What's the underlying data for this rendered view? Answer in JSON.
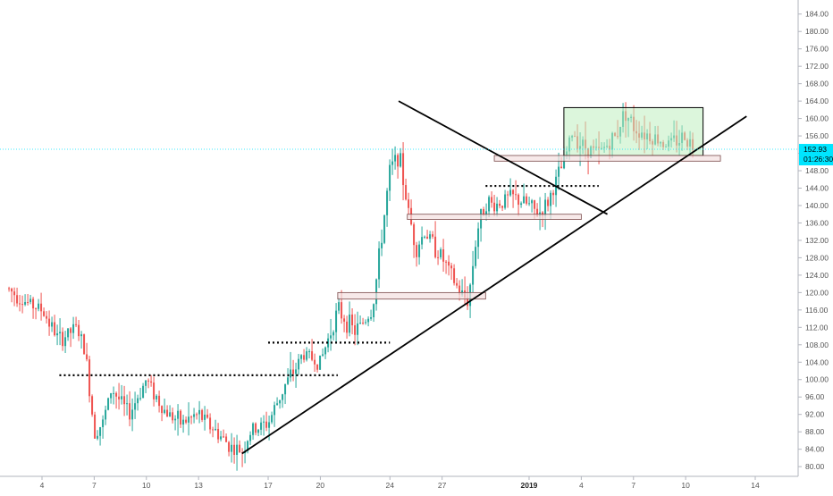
{
  "colors": {
    "background": "#ffffff",
    "up": "#26a69a",
    "down": "#ef5350",
    "axis_text": "#555555",
    "axis_line": "#b2b5be",
    "trendline": "#000000",
    "zone_fill": "#f3e0e0",
    "zone_stroke": "#7a4a4a",
    "range_fill": "#bfeebf",
    "price_tag": "#00e5ff"
  },
  "chart_data": {
    "type": "candlestick",
    "y_axis": {
      "position": "right",
      "range": [
        79,
        186
      ],
      "ticks": [
        80,
        84,
        88,
        92,
        96,
        100,
        104,
        108,
        112,
        116,
        120,
        124,
        128,
        132,
        136,
        140,
        144,
        148,
        152,
        156,
        160,
        164,
        168,
        172,
        176,
        180,
        184
      ],
      "tick_labels": [
        "80.00",
        "84.00",
        "88.00",
        "92.00",
        "96.00",
        "100.00",
        "104.00",
        "108.00",
        "112.00",
        "116.00",
        "120.00",
        "124.00",
        "128.00",
        "132.00",
        "136.00",
        "140.00",
        "144.00",
        "148.00",
        "152.00",
        "156.00",
        "160.00",
        "164.00",
        "168.00",
        "172.00",
        "176.00",
        "180.00",
        "184.00"
      ]
    },
    "x_axis": {
      "ticks": [
        {
          "label": "4",
          "date": "2018-12-04"
        },
        {
          "label": "7",
          "date": "2018-12-07"
        },
        {
          "label": "10",
          "date": "2018-12-10"
        },
        {
          "label": "13",
          "date": "2018-12-13"
        },
        {
          "label": "17",
          "date": "2018-12-17"
        },
        {
          "label": "20",
          "date": "2018-12-20"
        },
        {
          "label": "24",
          "date": "2018-12-24"
        },
        {
          "label": "27",
          "date": "2018-12-27"
        },
        {
          "label": "2019",
          "date": "2019-01-01",
          "bold": true
        },
        {
          "label": "4",
          "date": "2019-01-04"
        },
        {
          "label": "7",
          "date": "2019-01-07"
        },
        {
          "label": "10",
          "date": "2019-01-10"
        },
        {
          "label": "14",
          "date": "2019-01-14"
        }
      ]
    },
    "current_price": {
      "value": 152.93,
      "label": "152.93",
      "countdown": "01:26:30"
    },
    "price_path": [
      {
        "x": "2018-12-02",
        "y": 121
      },
      {
        "x": "2018-12-03",
        "y": 118
      },
      {
        "x": "2018-12-04",
        "y": 116
      },
      {
        "x": "2018-12-05",
        "y": 109
      },
      {
        "x": "2018-12-06",
        "y": 112
      },
      {
        "x": "2018-12-06 12:00",
        "y": 106
      },
      {
        "x": "2018-12-07",
        "y": 88
      },
      {
        "x": "2018-12-07 12:00",
        "y": 90
      },
      {
        "x": "2018-12-08",
        "y": 98
      },
      {
        "x": "2018-12-09",
        "y": 92
      },
      {
        "x": "2018-12-10",
        "y": 100
      },
      {
        "x": "2018-12-11",
        "y": 93
      },
      {
        "x": "2018-12-12",
        "y": 90
      },
      {
        "x": "2018-12-13",
        "y": 92
      },
      {
        "x": "2018-12-14",
        "y": 88
      },
      {
        "x": "2018-12-15",
        "y": 84
      },
      {
        "x": "2018-12-15 12:00",
        "y": 83.5
      },
      {
        "x": "2018-12-16",
        "y": 88
      },
      {
        "x": "2018-12-17",
        "y": 90
      },
      {
        "x": "2018-12-18",
        "y": 99
      },
      {
        "x": "2018-12-18 12:00",
        "y": 102
      },
      {
        "x": "2018-12-19",
        "y": 106
      },
      {
        "x": "2018-12-20",
        "y": 104
      },
      {
        "x": "2018-12-21",
        "y": 116
      },
      {
        "x": "2018-12-22",
        "y": 111
      },
      {
        "x": "2018-12-23",
        "y": 116
      },
      {
        "x": "2018-12-23 12:00",
        "y": 132
      },
      {
        "x": "2018-12-24",
        "y": 148
      },
      {
        "x": "2018-12-24 12:00",
        "y": 152
      },
      {
        "x": "2018-12-25",
        "y": 140
      },
      {
        "x": "2018-12-25 12:00",
        "y": 130
      },
      {
        "x": "2018-12-26",
        "y": 134
      },
      {
        "x": "2018-12-27",
        "y": 128
      },
      {
        "x": "2018-12-28",
        "y": 120
      },
      {
        "x": "2018-12-28 12:00",
        "y": 118
      },
      {
        "x": "2018-12-29",
        "y": 134
      },
      {
        "x": "2018-12-29 12:00",
        "y": 141
      },
      {
        "x": "2018-12-30",
        "y": 140
      },
      {
        "x": "2018-12-31",
        "y": 142
      },
      {
        "x": "2019-01-01",
        "y": 140
      },
      {
        "x": "2019-01-01 12:00",
        "y": 138
      },
      {
        "x": "2019-01-02",
        "y": 140
      },
      {
        "x": "2019-01-03",
        "y": 150
      },
      {
        "x": "2019-01-03 12:00",
        "y": 157
      },
      {
        "x": "2019-01-04",
        "y": 154
      },
      {
        "x": "2019-01-05",
        "y": 152
      },
      {
        "x": "2019-01-06",
        "y": 156
      },
      {
        "x": "2019-01-06 12:00",
        "y": 162
      },
      {
        "x": "2019-01-07",
        "y": 158
      },
      {
        "x": "2019-01-08",
        "y": 156
      },
      {
        "x": "2019-01-09",
        "y": 154
      },
      {
        "x": "2019-01-10",
        "y": 156
      },
      {
        "x": "2019-01-10 12:00",
        "y": 153
      }
    ],
    "annotations": {
      "trendlines": [
        {
          "name": "ascending-support-line",
          "from": {
            "x": "2018-12-15 12:00",
            "y": 83
          },
          "to": {
            "x": "2019-01-13 12:00",
            "y": 160.5
          }
        },
        {
          "name": "descending-resistance-line",
          "from": {
            "x": "2018-12-24 12:00",
            "y": 164
          },
          "to": {
            "x": "2019-01-05 12:00",
            "y": 138
          }
        }
      ],
      "dotted_levels": [
        {
          "name": "level-101",
          "y": 101,
          "from": "2018-12-05",
          "to": "2018-12-21"
        },
        {
          "name": "level-108-5",
          "y": 108.5,
          "from": "2018-12-17",
          "to": "2018-12-24"
        },
        {
          "name": "level-144-5",
          "y": 144.5,
          "from": "2018-12-29 12:00",
          "to": "2019-01-05"
        }
      ],
      "zones": [
        {
          "name": "zone-119",
          "y1": 118.5,
          "y2": 120,
          "from": "2018-12-21",
          "to": "2018-12-29 12:00"
        },
        {
          "name": "zone-137",
          "y1": 136.8,
          "y2": 138,
          "from": "2018-12-25",
          "to": "2019-01-04"
        },
        {
          "name": "zone-150",
          "y1": 150.2,
          "y2": 151.5,
          "from": "2018-12-30",
          "to": "2019-01-12"
        }
      ],
      "range_box": {
        "name": "consolidation-box",
        "y1": 151.5,
        "y2": 162.5,
        "from": "2019-01-03",
        "to": "2019-01-11"
      }
    }
  }
}
